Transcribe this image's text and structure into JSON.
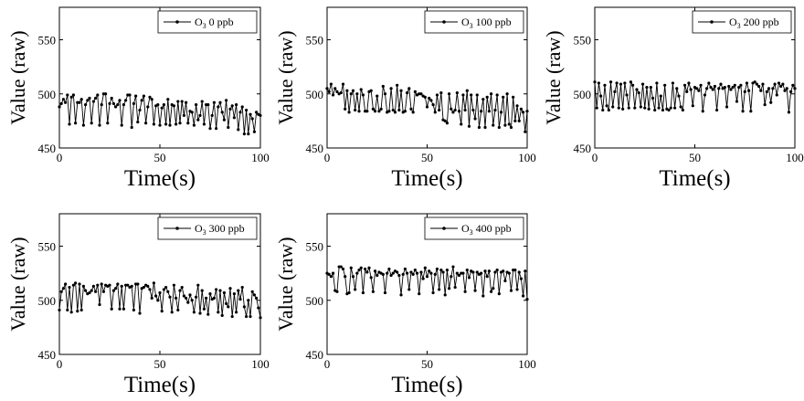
{
  "chart_data": [
    {
      "type": "line",
      "xlabel": "Time(s)",
      "ylabel": "Value (raw)",
      "xlim": [
        0,
        100
      ],
      "ylim": [
        450,
        580
      ],
      "xticks": [
        "0",
        "50",
        "100"
      ],
      "yticks": [
        "450",
        "500",
        "550"
      ],
      "legend": {
        "prefix": "O",
        "sub": "3",
        "suffix": " 0 ppb",
        "placement": "top-right"
      },
      "series": [
        {
          "name": "O3 0 ppb",
          "x": [
            0,
            1,
            2,
            3,
            4,
            5,
            6,
            7,
            8,
            9,
            10,
            11,
            12,
            13,
            14,
            15,
            16,
            17,
            18,
            19,
            20,
            21,
            22,
            23,
            24,
            25,
            26,
            27,
            28,
            29,
            30,
            31,
            32,
            33,
            34,
            35,
            36,
            37,
            38,
            39,
            40,
            41,
            42,
            43,
            44,
            45,
            46,
            47,
            48,
            49,
            50,
            51,
            52,
            53,
            54,
            55,
            56,
            57,
            58,
            59,
            60,
            61,
            62,
            63,
            64,
            65,
            66,
            67,
            68,
            69,
            70,
            71,
            72,
            73,
            74,
            75,
            76,
            77,
            78,
            79,
            80,
            81,
            82,
            83,
            84,
            85,
            86,
            87,
            88,
            89,
            90,
            91,
            92,
            93,
            94,
            95,
            96,
            97,
            98,
            99,
            100
          ],
          "values": [
            488,
            491,
            495,
            492,
            499,
            472,
            497,
            499,
            473,
            492,
            492,
            495,
            471,
            490,
            494,
            496,
            473,
            493,
            496,
            499,
            471,
            490,
            500,
            500,
            473,
            491,
            496,
            491,
            488,
            490,
            494,
            471,
            490,
            494,
            499,
            499,
            469,
            491,
            498,
            474,
            485,
            494,
            498,
            473,
            488,
            497,
            495,
            472,
            489,
            490,
            471,
            487,
            490,
            472,
            495,
            471,
            490,
            489,
            472,
            493,
            473,
            493,
            480,
            492,
            473,
            484,
            483,
            471,
            490,
            476,
            480,
            493,
            472,
            490,
            490,
            468,
            480,
            492,
            468,
            488,
            492,
            483,
            476,
            494,
            469,
            486,
            489,
            478,
            490,
            467,
            483,
            488,
            463,
            485,
            463,
            481,
            477,
            465,
            483,
            481,
            480
          ]
        }
      ]
    },
    {
      "type": "line",
      "xlabel": "Time(s)",
      "ylabel": "Value (raw)",
      "xlim": [
        0,
        100
      ],
      "ylim": [
        450,
        580
      ],
      "xticks": [
        "0",
        "50",
        "100"
      ],
      "yticks": [
        "450",
        "500",
        "550"
      ],
      "legend": {
        "prefix": "O",
        "sub": "3",
        "suffix": " 100 ppb",
        "placement": "top-right"
      },
      "series": [
        {
          "name": "O3 100 ppb",
          "x": [
            0,
            1,
            2,
            3,
            4,
            5,
            6,
            7,
            8,
            9,
            10,
            11,
            12,
            13,
            14,
            15,
            16,
            17,
            18,
            19,
            20,
            21,
            22,
            23,
            24,
            25,
            26,
            27,
            28,
            29,
            30,
            31,
            32,
            33,
            34,
            35,
            36,
            37,
            38,
            39,
            40,
            41,
            42,
            43,
            44,
            45,
            46,
            47,
            48,
            49,
            50,
            51,
            52,
            53,
            54,
            55,
            56,
            57,
            58,
            59,
            60,
            61,
            62,
            63,
            64,
            65,
            66,
            67,
            68,
            69,
            70,
            71,
            72,
            73,
            74,
            75,
            76,
            77,
            78,
            79,
            80,
            81,
            82,
            83,
            84,
            85,
            86,
            87,
            88,
            89,
            90,
            91,
            92,
            93,
            94,
            95,
            96,
            97,
            98,
            99,
            100
          ],
          "values": [
            505,
            502,
            509,
            499,
            505,
            502,
            500,
            501,
            509,
            486,
            503,
            483,
            500,
            503,
            485,
            500,
            484,
            504,
            499,
            484,
            484,
            502,
            503,
            486,
            484,
            498,
            484,
            486,
            507,
            500,
            483,
            484,
            505,
            485,
            483,
            508,
            485,
            503,
            483,
            484,
            501,
            505,
            486,
            483,
            502,
            499,
            500,
            500,
            498,
            497,
            488,
            496,
            494,
            490,
            483,
            499,
            485,
            501,
            476,
            475,
            473,
            500,
            486,
            483,
            485,
            501,
            484,
            472,
            499,
            485,
            503,
            470,
            499,
            485,
            477,
            499,
            469,
            484,
            495,
            469,
            497,
            484,
            500,
            471,
            485,
            499,
            469,
            483,
            497,
            471,
            500,
            472,
            469,
            497,
            475,
            489,
            475,
            486,
            483,
            465,
            484
          ]
        }
      ]
    },
    {
      "type": "line",
      "xlabel": "Time(s)",
      "ylabel": "Value (raw)",
      "xlim": [
        0,
        100
      ],
      "ylim": [
        450,
        580
      ],
      "xticks": [
        "0",
        "50",
        "100"
      ],
      "yticks": [
        "450",
        "500",
        "550"
      ],
      "legend": {
        "prefix": "O",
        "sub": "3",
        "suffix": " 200 ppb",
        "placement": "top-right"
      },
      "series": [
        {
          "name": "O3 200 ppb",
          "x": [
            0,
            1,
            2,
            3,
            4,
            5,
            6,
            7,
            8,
            9,
            10,
            11,
            12,
            13,
            14,
            15,
            16,
            17,
            18,
            19,
            20,
            21,
            22,
            23,
            24,
            25,
            26,
            27,
            28,
            29,
            30,
            31,
            32,
            33,
            34,
            35,
            36,
            37,
            38,
            39,
            40,
            41,
            42,
            43,
            44,
            45,
            46,
            47,
            48,
            49,
            50,
            51,
            52,
            53,
            54,
            55,
            56,
            57,
            58,
            59,
            60,
            61,
            62,
            63,
            64,
            65,
            66,
            67,
            68,
            69,
            70,
            71,
            72,
            73,
            74,
            75,
            76,
            77,
            78,
            79,
            80,
            81,
            82,
            83,
            84,
            85,
            86,
            87,
            88,
            89,
            90,
            91,
            92,
            93,
            94,
            95,
            96,
            97,
            98,
            99,
            100
          ],
          "values": [
            511,
            487,
            510,
            498,
            485,
            508,
            489,
            485,
            511,
            488,
            502,
            510,
            487,
            509,
            486,
            510,
            499,
            487,
            511,
            508,
            487,
            504,
            501,
            488,
            509,
            487,
            506,
            486,
            506,
            496,
            485,
            510,
            487,
            498,
            485,
            508,
            486,
            485,
            487,
            510,
            487,
            505,
            498,
            488,
            485,
            508,
            502,
            510,
            504,
            489,
            506,
            505,
            503,
            508,
            484,
            499,
            505,
            510,
            506,
            504,
            507,
            485,
            505,
            509,
            505,
            506,
            488,
            507,
            504,
            506,
            508,
            493,
            506,
            508,
            484,
            502,
            510,
            503,
            484,
            510,
            511,
            509,
            507,
            503,
            509,
            490,
            502,
            505,
            492,
            505,
            509,
            499,
            510,
            507,
            509,
            503,
            505,
            483,
            502,
            508,
            505
          ]
        }
      ]
    },
    {
      "type": "line",
      "xlabel": "Time(s)",
      "ylabel": "Value (raw)",
      "xlim": [
        0,
        100
      ],
      "ylim": [
        450,
        580
      ],
      "xticks": [
        "0",
        "50",
        "100"
      ],
      "yticks": [
        "450",
        "500",
        "550"
      ],
      "legend": {
        "prefix": "O",
        "sub": "3",
        "suffix": " 300 ppb",
        "placement": "top-right"
      },
      "series": [
        {
          "name": "O3 300 ppb",
          "x": [
            0,
            1,
            2,
            3,
            4,
            5,
            6,
            7,
            8,
            9,
            10,
            11,
            12,
            13,
            14,
            15,
            16,
            17,
            18,
            19,
            20,
            21,
            22,
            23,
            24,
            25,
            26,
            27,
            28,
            29,
            30,
            31,
            32,
            33,
            34,
            35,
            36,
            37,
            38,
            39,
            40,
            41,
            42,
            43,
            44,
            45,
            46,
            47,
            48,
            49,
            50,
            51,
            52,
            53,
            54,
            55,
            56,
            57,
            58,
            59,
            60,
            61,
            62,
            63,
            64,
            65,
            66,
            67,
            68,
            69,
            70,
            71,
            72,
            73,
            74,
            75,
            76,
            77,
            78,
            79,
            80,
            81,
            82,
            83,
            84,
            85,
            86,
            87,
            88,
            89,
            90,
            91,
            92,
            93,
            94,
            95,
            96,
            97,
            98,
            99,
            100
          ],
          "values": [
            491,
            508,
            511,
            515,
            491,
            512,
            489,
            514,
            516,
            490,
            515,
            491,
            513,
            509,
            506,
            507,
            509,
            513,
            508,
            514,
            496,
            515,
            508,
            514,
            513,
            514,
            492,
            509,
            511,
            515,
            492,
            513,
            492,
            514,
            514,
            512,
            513,
            491,
            515,
            515,
            488,
            511,
            512,
            514,
            513,
            510,
            502,
            516,
            504,
            500,
            507,
            490,
            510,
            512,
            508,
            503,
            489,
            514,
            502,
            491,
            509,
            512,
            504,
            502,
            498,
            505,
            500,
            489,
            503,
            514,
            488,
            509,
            492,
            502,
            487,
            506,
            501,
            502,
            510,
            489,
            509,
            486,
            507,
            497,
            494,
            511,
            485,
            506,
            489,
            509,
            501,
            512,
            494,
            485,
            500,
            485,
            508,
            505,
            502,
            493,
            484
          ]
        }
      ]
    },
    {
      "type": "line",
      "xlabel": "Time(s)",
      "ylabel": "Value (raw)",
      "xlim": [
        0,
        100
      ],
      "ylim": [
        450,
        580
      ],
      "xticks": [
        "0",
        "50",
        "100"
      ],
      "yticks": [
        "450",
        "500",
        "550"
      ],
      "legend": {
        "prefix": "O",
        "sub": "3",
        "suffix": " 400 ppb",
        "placement": "top-right"
      },
      "series": [
        {
          "name": "O3 400 ppb",
          "x": [
            0,
            1,
            2,
            3,
            4,
            5,
            6,
            7,
            8,
            9,
            10,
            11,
            12,
            13,
            14,
            15,
            16,
            17,
            18,
            19,
            20,
            21,
            22,
            23,
            24,
            25,
            26,
            27,
            28,
            29,
            30,
            31,
            32,
            33,
            34,
            35,
            36,
            37,
            38,
            39,
            40,
            41,
            42,
            43,
            44,
            45,
            46,
            47,
            48,
            49,
            50,
            51,
            52,
            53,
            54,
            55,
            56,
            57,
            58,
            59,
            60,
            61,
            62,
            63,
            64,
            65,
            66,
            67,
            68,
            69,
            70,
            71,
            72,
            73,
            74,
            75,
            76,
            77,
            78,
            79,
            80,
            81,
            82,
            83,
            84,
            85,
            86,
            87,
            88,
            89,
            90,
            91,
            92,
            93,
            94,
            95,
            96,
            97,
            98,
            99,
            100
          ],
          "values": [
            525,
            524,
            522,
            525,
            509,
            508,
            531,
            531,
            529,
            522,
            506,
            507,
            530,
            522,
            510,
            525,
            528,
            530,
            507,
            529,
            526,
            530,
            521,
            508,
            527,
            523,
            526,
            525,
            524,
            507,
            525,
            529,
            523,
            525,
            527,
            526,
            523,
            505,
            524,
            529,
            525,
            510,
            526,
            524,
            528,
            525,
            506,
            526,
            520,
            530,
            522,
            527,
            525,
            507,
            524,
            529,
            510,
            528,
            526,
            505,
            528,
            511,
            522,
            531,
            512,
            525,
            523,
            525,
            525,
            508,
            528,
            521,
            527,
            526,
            509,
            526,
            524,
            525,
            504,
            527,
            522,
            527,
            508,
            511,
            526,
            528,
            506,
            526,
            527,
            518,
            526,
            525,
            509,
            528,
            528,
            510,
            526,
            520,
            504,
            527,
            501
          ]
        }
      ]
    }
  ]
}
